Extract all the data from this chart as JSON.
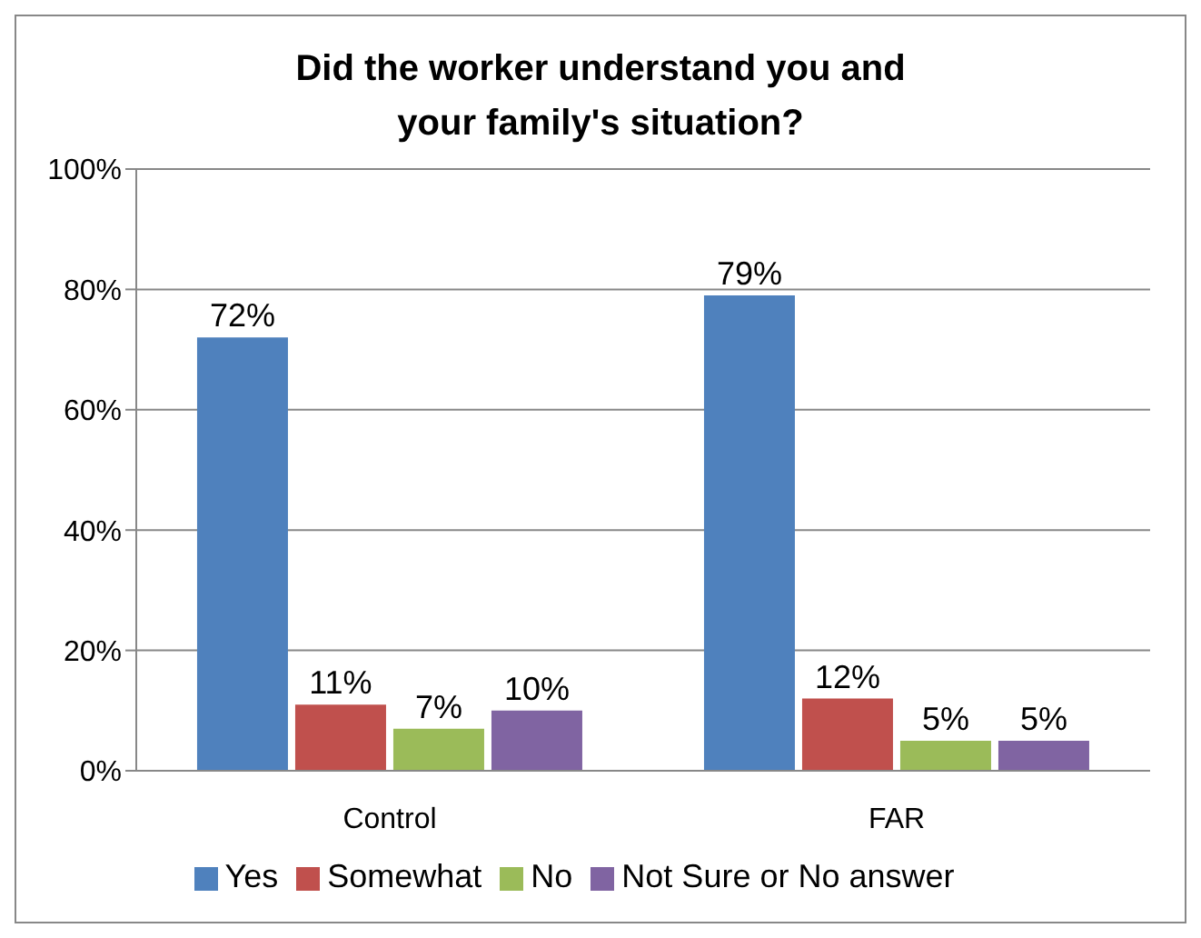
{
  "chart_data": {
    "type": "bar",
    "title": "Did the worker understand you and your family's situation?",
    "categories": [
      "Control",
      "FAR"
    ],
    "series": [
      {
        "name": "Yes",
        "color": "#4f81bd",
        "values": [
          72,
          79
        ],
        "value_labels": [
          "72%",
          "79%"
        ]
      },
      {
        "name": "Somewhat",
        "color": "#c0504d",
        "values": [
          11,
          12
        ],
        "value_labels": [
          "11%",
          "12%"
        ]
      },
      {
        "name": "No",
        "color": "#9bbb59",
        "values": [
          7,
          5
        ],
        "value_labels": [
          "7%",
          "5%"
        ]
      },
      {
        "name": "Not Sure or No answer",
        "color": "#8064a2",
        "values": [
          10,
          5
        ],
        "value_labels": [
          "10%",
          "5%"
        ]
      }
    ],
    "ylim": [
      0,
      100
    ],
    "yticks": [
      {
        "value": 0,
        "label": "0%"
      },
      {
        "value": 20,
        "label": "20%"
      },
      {
        "value": 40,
        "label": "40%"
      },
      {
        "value": 60,
        "label": "60%"
      },
      {
        "value": 80,
        "label": "80%"
      },
      {
        "value": 100,
        "label": "100%"
      }
    ],
    "grid": "y",
    "legend": "bottom"
  }
}
